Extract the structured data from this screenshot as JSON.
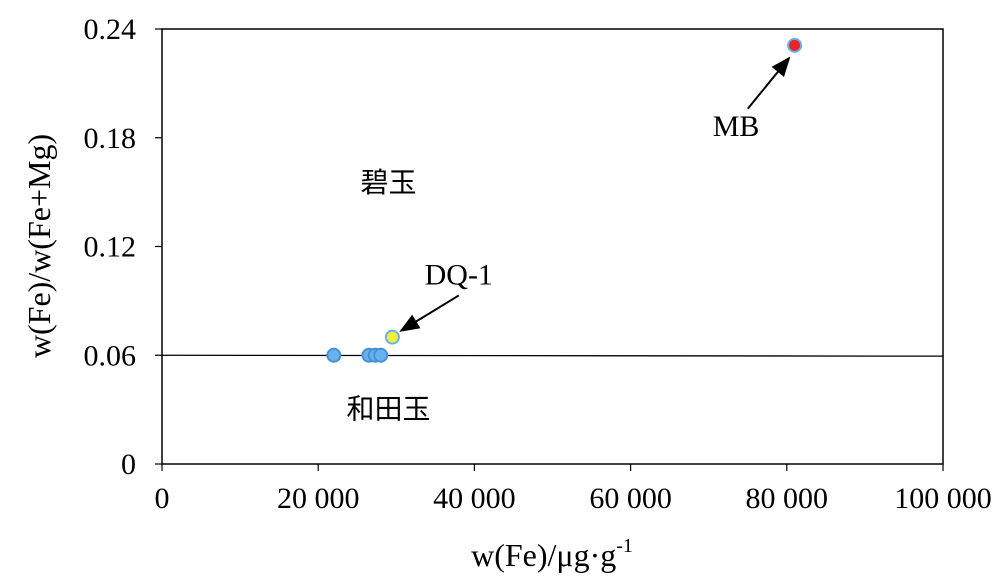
{
  "chart_data": {
    "type": "scatter",
    "title": "",
    "xlabel": "w(Fe)/μg·g",
    "xlabel_sup": "-1",
    "ylabel": "w(Fe)/w(Fe+Mg)",
    "xlim": [
      0,
      100000
    ],
    "ylim": [
      0,
      0.24
    ],
    "x_ticks": [
      0,
      20000,
      40000,
      60000,
      80000,
      100000
    ],
    "x_tick_labels": [
      "0",
      "20 000",
      "40 000",
      "60 000",
      "80 000",
      "100 000"
    ],
    "y_ticks": [
      0,
      0.06,
      0.12,
      0.18,
      0.24
    ],
    "y_tick_labels": [
      "0",
      "0.06",
      "0.12",
      "0.18",
      "0.24"
    ],
    "grid": false,
    "boundary_line": {
      "x": [
        0,
        100000
      ],
      "y": [
        0.06,
        0.0595
      ]
    },
    "regions": [
      {
        "label": "碧玉",
        "x": 29000,
        "y": 0.15
      },
      {
        "label": "和田玉",
        "x": 29000,
        "y": 0.025
      }
    ],
    "points": [
      {
        "x": 22000,
        "y": 0.06,
        "fill": "#66b2f0",
        "stroke": "#4a8fd0"
      },
      {
        "x": 26500,
        "y": 0.06,
        "fill": "#66b2f0",
        "stroke": "#4a8fd0"
      },
      {
        "x": 27300,
        "y": 0.06,
        "fill": "#66b2f0",
        "stroke": "#4a8fd0"
      },
      {
        "x": 28000,
        "y": 0.06,
        "fill": "#66b2f0",
        "stroke": "#4a8fd0"
      },
      {
        "x": 29500,
        "y": 0.07,
        "fill": "#f2ee3a",
        "stroke": "#66b2f0"
      },
      {
        "x": 81000,
        "y": 0.231,
        "fill": "#e8262a",
        "stroke": "#66b2f0"
      }
    ],
    "annotations": [
      {
        "text": "DQ-1",
        "text_x": 38000,
        "text_y": 0.099,
        "arrow_from": [
          38000,
          0.093
        ],
        "arrow_to": [
          30600,
          0.0735
        ]
      },
      {
        "text": "MB",
        "text_x": 73500,
        "text_y": 0.181,
        "arrow_from": [
          75000,
          0.196
        ],
        "arrow_to": [
          80300,
          0.224
        ]
      }
    ]
  }
}
